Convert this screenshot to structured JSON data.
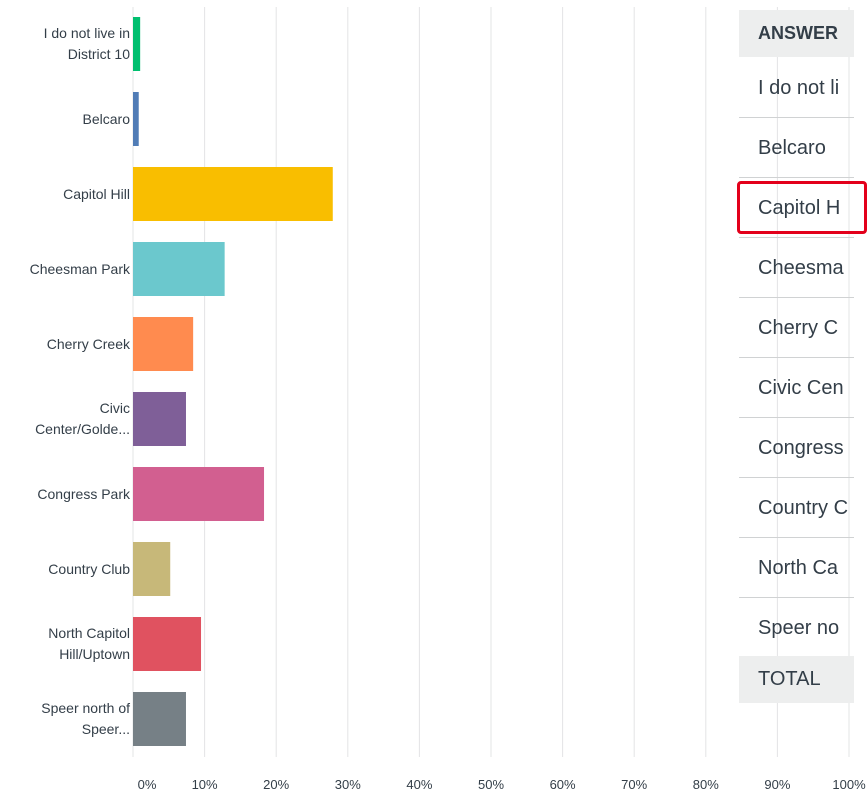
{
  "chart_data": {
    "type": "bar",
    "orientation": "horizontal",
    "categories": [
      "I do not live in District 10",
      "Belcaro",
      "Capitol Hill",
      "Cheesman Park",
      "Cherry Creek",
      "Civic Center/Golde...",
      "Congress Park",
      "Country Club",
      "North Capitol Hill/Uptown",
      "Speer north of Speer..."
    ],
    "values": [
      1.0,
      0.8,
      27.9,
      12.8,
      8.4,
      7.4,
      18.3,
      5.2,
      9.5,
      7.4
    ],
    "colors": [
      "#00bf6f",
      "#507cb6",
      "#f9be00",
      "#6bc8cd",
      "#ff8b4f",
      "#7f5f98",
      "#d25f90",
      "#c7b879",
      "#e05260",
      "#768086"
    ],
    "xlim": [
      0,
      100
    ],
    "xticks": [
      {
        "value": 0,
        "label": "0%"
      },
      {
        "value": 10,
        "label": "10%"
      },
      {
        "value": 20,
        "label": "20%"
      },
      {
        "value": 30,
        "label": "30%"
      },
      {
        "value": 40,
        "label": "40%"
      },
      {
        "value": 50,
        "label": "50%"
      },
      {
        "value": 60,
        "label": "60%"
      },
      {
        "value": 70,
        "label": "70%"
      },
      {
        "value": 80,
        "label": "80%"
      },
      {
        "value": 90,
        "label": "90%"
      },
      {
        "value": 100,
        "label": "100%"
      }
    ],
    "grid": true
  },
  "table": {
    "header": "ANSWER",
    "rows": [
      "I do not li",
      "Belcaro",
      "Capitol H",
      "Cheesma",
      "Cherry C",
      "Civic Cen",
      "Congress",
      "Country C",
      "North Ca",
      "Speer no"
    ],
    "total": "TOTAL"
  }
}
